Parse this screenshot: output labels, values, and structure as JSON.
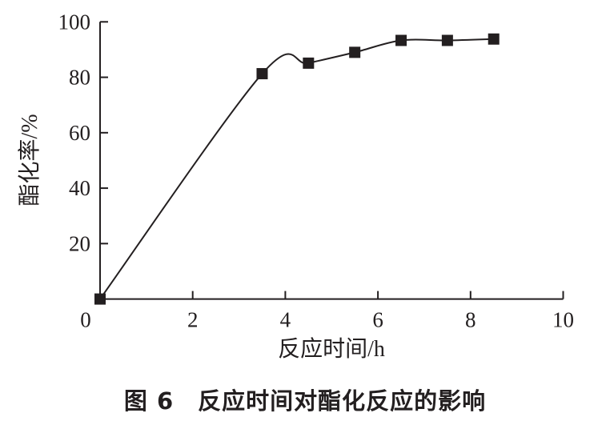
{
  "chart_data": {
    "type": "line",
    "title": "",
    "xlabel": "反应时间/h",
    "ylabel": "酯化率/%",
    "xlim": [
      0,
      10
    ],
    "ylim": [
      0,
      100
    ],
    "xticks": [
      0,
      2,
      4,
      6,
      8,
      10
    ],
    "yticks": [
      20,
      40,
      60,
      80,
      100
    ],
    "x_tick_labels": [
      "0",
      "2",
      "4",
      "6",
      "8",
      "10"
    ],
    "y_tick_labels": [
      "20",
      "40",
      "60",
      "80",
      "100"
    ],
    "grid": false,
    "marker": "square",
    "smooth": true,
    "color": "#231f20",
    "x": [
      0,
      3.5,
      4.5,
      5.5,
      6.5,
      7.5,
      8.5
    ],
    "y": [
      0,
      81.3,
      85.1,
      89.0,
      93.3,
      93.3,
      93.8
    ]
  },
  "caption": "图 6　反应时间对酯化反应的影响"
}
